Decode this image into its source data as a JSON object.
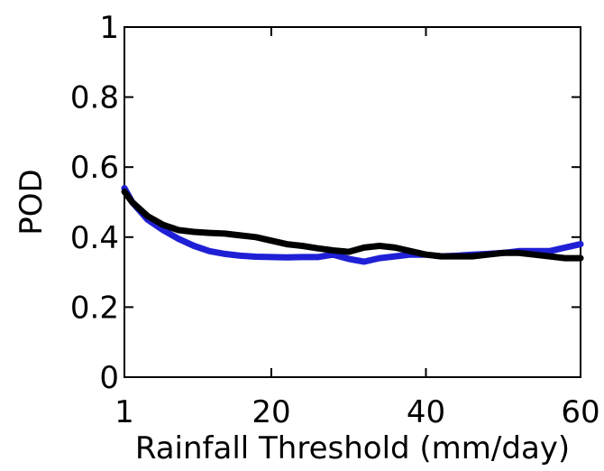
{
  "chart_data": {
    "type": "line",
    "title": "",
    "xlabel": "Rainfall Threshold (mm/day)",
    "ylabel": "POD",
    "xlim": [
      1,
      60
    ],
    "ylim": [
      0,
      1
    ],
    "xticks": [
      1,
      20,
      40,
      60
    ],
    "yticks": [
      0,
      0.2,
      0.4,
      0.6,
      0.8,
      1
    ],
    "ytick_labels": [
      "0",
      "0.2",
      "0.4",
      "0.6",
      "0.8",
      "1"
    ],
    "grid": false,
    "legend": "none",
    "series": [
      {
        "color": "#1f1fd6",
        "x": [
          1,
          2,
          4,
          6,
          8,
          10,
          12,
          14,
          16,
          18,
          20,
          22,
          24,
          26,
          28,
          30,
          32,
          34,
          36,
          38,
          40,
          42,
          44,
          46,
          48,
          50,
          52,
          54,
          56,
          58,
          60
        ],
        "y": [
          0.54,
          0.5,
          0.45,
          0.42,
          0.395,
          0.375,
          0.36,
          0.352,
          0.347,
          0.344,
          0.343,
          0.342,
          0.343,
          0.343,
          0.35,
          0.338,
          0.33,
          0.34,
          0.345,
          0.35,
          0.35,
          0.345,
          0.347,
          0.35,
          0.352,
          0.355,
          0.36,
          0.36,
          0.36,
          0.37,
          0.38
        ]
      },
      {
        "color": "#000000",
        "x": [
          1,
          2,
          4,
          6,
          8,
          10,
          12,
          14,
          16,
          18,
          20,
          22,
          24,
          26,
          28,
          30,
          32,
          34,
          36,
          38,
          40,
          42,
          44,
          46,
          48,
          50,
          52,
          54,
          56,
          58,
          60
        ],
        "y": [
          0.53,
          0.5,
          0.46,
          0.435,
          0.42,
          0.415,
          0.412,
          0.41,
          0.405,
          0.4,
          0.39,
          0.38,
          0.375,
          0.368,
          0.362,
          0.358,
          0.37,
          0.375,
          0.37,
          0.36,
          0.35,
          0.345,
          0.345,
          0.345,
          0.35,
          0.355,
          0.355,
          0.35,
          0.345,
          0.34,
          0.34
        ]
      }
    ]
  }
}
